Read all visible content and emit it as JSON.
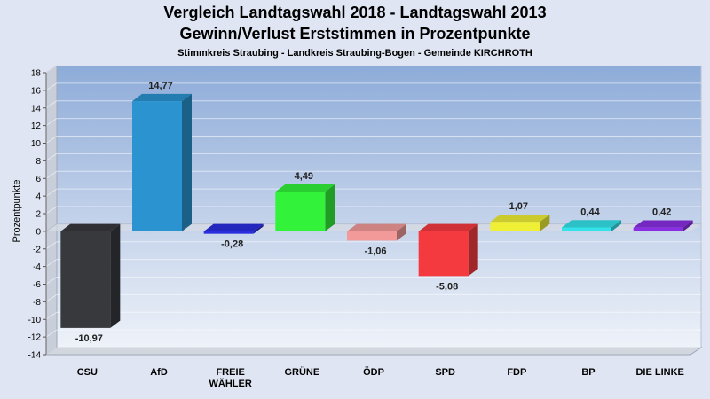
{
  "header": {
    "title": "Vergleich Landtagswahl 2018 - Landtagswahl 2013",
    "subtitle": "Gewinn/Verlust Erststimmen in Prozentpunkte",
    "subsubtitle": "Stimmkreis Straubing - Landkreis Straubing-Bogen - Gemeinde KIRCHROTH"
  },
  "chart_data": {
    "type": "bar",
    "title": "Vergleich Landtagswahl 2018 - Landtagswahl 2013",
    "subtitle": "Gewinn/Verlust Erststimmen in Prozentpunkte",
    "ylabel": "Prozentpunkte",
    "xlabel": "",
    "ylim": [
      -14,
      18
    ],
    "yticks": [
      -14,
      -12,
      -10,
      -8,
      -6,
      -4,
      -2,
      0,
      2,
      4,
      6,
      8,
      10,
      12,
      14,
      16,
      18
    ],
    "grid": true,
    "categories": [
      "CSU",
      "AfD",
      "FREIE WÄHLER",
      "GRÜNE",
      "ÖDP",
      "SPD",
      "FDP",
      "BP",
      "DIE LINKE"
    ],
    "category_lines": [
      [
        "CSU"
      ],
      [
        "AfD"
      ],
      [
        "FREIE",
        "WÄHLER"
      ],
      [
        "GRÜNE"
      ],
      [
        "ÖDP"
      ],
      [
        "SPD"
      ],
      [
        "FDP"
      ],
      [
        "BP"
      ],
      [
        "DIE LINKE"
      ]
    ],
    "values": [
      -10.97,
      14.77,
      -0.28,
      4.49,
      -1.06,
      -5.08,
      1.07,
      0.44,
      0.42
    ],
    "value_labels": [
      "-10,97",
      "14,77",
      "-0,28",
      "4,49",
      "-1,06",
      "-5,08",
      "1,07",
      "0,44",
      "0,42"
    ],
    "colors": [
      "#38393d",
      "#2a93d0",
      "#2a2ee0",
      "#33f23a",
      "#f29a9a",
      "#f53a3f",
      "#efef36",
      "#34e2ea",
      "#8a2ee3"
    ]
  }
}
